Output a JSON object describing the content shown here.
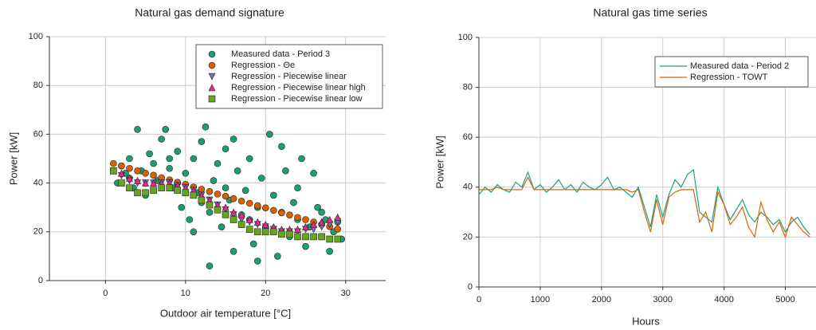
{
  "chart_data": [
    {
      "type": "scatter",
      "title": "Natural gas demand signature",
      "xlabel": "Outdoor air temperature [°C]",
      "ylabel": "Power [kW]",
      "xlim": [
        -7,
        35
      ],
      "xticks": [
        0,
        10,
        20,
        30
      ],
      "ylim": [
        0,
        100
      ],
      "yticks": [
        0,
        20,
        40,
        60,
        80,
        100
      ],
      "grid": true,
      "legend": "upper right",
      "series": [
        {
          "name": "Measured data - Period 3",
          "color": "#1b9e77",
          "marker": "circle",
          "x": [
            1.5,
            2,
            2.5,
            3,
            3.5,
            4,
            4.5,
            5,
            5.5,
            6,
            6.5,
            7,
            7.5,
            8,
            8.5,
            9,
            9.5,
            10,
            10.5,
            11,
            11.5,
            12,
            12.5,
            13,
            13.5,
            14,
            14.5,
            15,
            15.5,
            16,
            16.5,
            17,
            17.5,
            18,
            18.5,
            19,
            19.5,
            20,
            20.5,
            21,
            21.5,
            22,
            22.5,
            23,
            23.5,
            24,
            24.5,
            25,
            25.5,
            26,
            26.5,
            27,
            27.5,
            28,
            28.5,
            29,
            29.5,
            3,
            6,
            9,
            12,
            15,
            18,
            21,
            24,
            27,
            13,
            16,
            8,
            11,
            19,
            22
          ],
          "values": [
            40,
            47,
            44,
            50,
            38,
            62,
            45,
            35,
            52,
            48,
            41,
            58,
            62,
            46,
            38,
            53,
            30,
            44,
            25,
            50,
            36,
            57,
            63,
            28,
            41,
            48,
            22,
            54,
            33,
            12,
            45,
            27,
            37,
            50,
            15,
            30,
            42,
            22,
            60,
            35,
            10,
            28,
            45,
            18,
            32,
            25,
            50,
            14,
            22,
            44,
            30,
            18,
            25,
            12,
            20,
            24,
            17,
            42,
            37,
            40,
            32,
            38,
            25,
            20,
            38,
            28,
            6,
            58,
            50,
            20,
            8,
            55
          ]
        },
        {
          "name": "Regression  - Θe",
          "color": "#d95f02",
          "marker": "circle",
          "x": [
            1,
            2,
            3,
            4,
            5,
            6,
            7,
            8,
            9,
            10,
            11,
            12,
            13,
            14,
            15,
            16,
            17,
            18,
            19,
            20,
            21,
            22,
            23,
            24,
            25,
            26,
            27,
            28,
            29
          ],
          "values": [
            48,
            47,
            46,
            45,
            44,
            43.2,
            42.2,
            41.3,
            40.3,
            39.4,
            38.4,
            37.4,
            36.5,
            35.5,
            34.6,
            33.6,
            32.6,
            31.7,
            30.7,
            29.8,
            28.8,
            27.8,
            26.9,
            25.9,
            25,
            24,
            23,
            22.1,
            21.1
          ]
        },
        {
          "name": "Regression - Piecewise linear",
          "color": "#7570b3",
          "marker": "triangle-down",
          "x": [
            1,
            2,
            3,
            4,
            5,
            6,
            7,
            8,
            9,
            10,
            11,
            12,
            13,
            14,
            15,
            16,
            17,
            18,
            19,
            20,
            21,
            22,
            23,
            24,
            25,
            26,
            27,
            28,
            29
          ],
          "values": [
            45,
            43,
            41,
            40,
            40,
            40,
            40,
            40,
            39,
            38,
            37,
            35,
            33,
            31,
            29,
            27,
            25,
            24,
            23,
            22,
            21,
            20,
            20,
            20,
            21,
            21,
            22,
            23,
            24
          ]
        },
        {
          "name": "Regression - Piecewise linear high",
          "color": "#e7298a",
          "marker": "triangle-up",
          "x": [
            1,
            2,
            3,
            4,
            5,
            6,
            7,
            8,
            9,
            10,
            11,
            12,
            13,
            14,
            15,
            16,
            17,
            18,
            19,
            20,
            21,
            22,
            23,
            24,
            25,
            26,
            27,
            28,
            29
          ],
          "values": [
            45,
            44,
            42,
            41,
            40,
            40,
            40,
            40,
            39,
            38,
            37,
            35,
            33,
            31,
            30,
            28,
            27,
            25,
            24,
            23,
            22,
            21,
            21,
            21,
            22,
            23,
            24,
            25,
            26
          ]
        },
        {
          "name": "Regression - Piecewise linear low",
          "color": "#66a61e",
          "marker": "square",
          "x": [
            1,
            2,
            3,
            4,
            5,
            6,
            7,
            8,
            9,
            10,
            11,
            12,
            13,
            14,
            15,
            16,
            17,
            18,
            19,
            20,
            21,
            22,
            23,
            24,
            25,
            26,
            27,
            28,
            29
          ],
          "values": [
            45,
            40,
            38,
            36,
            36,
            37,
            38,
            38,
            37,
            36,
            35,
            33,
            31,
            29,
            27,
            25,
            23,
            21,
            20,
            20,
            20,
            19,
            19,
            18,
            18,
            18,
            18,
            17,
            17
          ]
        }
      ]
    },
    {
      "type": "line",
      "title": "Natural gas time series",
      "xlabel": "Hours",
      "ylabel": "Power [kW]",
      "xlim": [
        0,
        5500
      ],
      "xticks": [
        0,
        1000,
        2000,
        3000,
        4000,
        5000
      ],
      "ylim": [
        0,
        100
      ],
      "yticks": [
        0,
        20,
        40,
        60,
        80,
        100
      ],
      "grid": true,
      "legend": "upper right",
      "x": [
        0,
        100,
        200,
        300,
        400,
        500,
        600,
        700,
        800,
        900,
        1000,
        1100,
        1200,
        1300,
        1400,
        1500,
        1600,
        1700,
        1800,
        1900,
        2000,
        2100,
        2200,
        2300,
        2400,
        2500,
        2600,
        2700,
        2800,
        2900,
        3000,
        3100,
        3200,
        3300,
        3400,
        3500,
        3600,
        3700,
        3800,
        3900,
        4000,
        4100,
        4200,
        4300,
        4400,
        4500,
        4600,
        4700,
        4800,
        4900,
        5000,
        5100,
        5200,
        5300,
        5400
      ],
      "series": [
        {
          "name": "Measured data - Period 2",
          "color": "#1b9e8a",
          "values": [
            37,
            40,
            38,
            41,
            39,
            38,
            42,
            40,
            46,
            39,
            41,
            38,
            40,
            43,
            39,
            41,
            38,
            42,
            40,
            39,
            41,
            44,
            39,
            40,
            38,
            36,
            40,
            32,
            24,
            37,
            28,
            37,
            43,
            40,
            45,
            47,
            30,
            28,
            26,
            40,
            33,
            27,
            31,
            35,
            29,
            26,
            30,
            28,
            25,
            27,
            22,
            26,
            28,
            24,
            21
          ]
        },
        {
          "name": "Regression - TOWT",
          "color": "#d9650b",
          "values": [
            39,
            39,
            39,
            40,
            39,
            39,
            39,
            39,
            44,
            39,
            39,
            39,
            39,
            39,
            39,
            39,
            39,
            39,
            39,
            39,
            39,
            39,
            39,
            39,
            39,
            38,
            39,
            30,
            22,
            35,
            25,
            36,
            38,
            39,
            39,
            39,
            26,
            30,
            22,
            38,
            33,
            25,
            28,
            32,
            24,
            20,
            34,
            27,
            22,
            26,
            20,
            28,
            25,
            22,
            20
          ]
        }
      ]
    }
  ]
}
